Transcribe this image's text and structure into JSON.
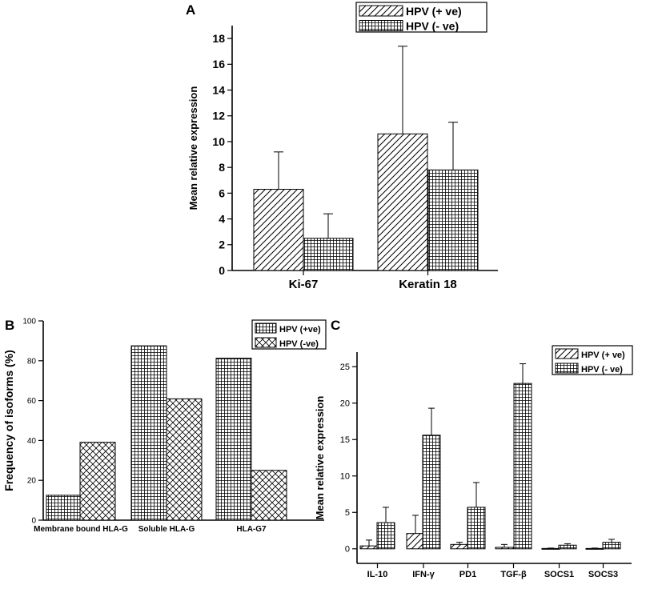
{
  "chart_data": [
    {
      "panel": "A",
      "type": "bar",
      "categories": [
        "Ki-67",
        "Keratin 18"
      ],
      "series": [
        {
          "name": "HPV (+ ve)",
          "values": [
            6.3,
            10.6
          ],
          "errors": [
            2.9,
            6.8
          ],
          "pattern": "diag"
        },
        {
          "name": "HPV (- ve)",
          "values": [
            2.5,
            7.8
          ],
          "errors": [
            1.9,
            3.7
          ],
          "pattern": "grid"
        }
      ],
      "title": "",
      "xlabel": "",
      "ylabel": "Mean relative expression",
      "ylim": [
        0,
        19
      ],
      "yticks": [
        0,
        2,
        4,
        6,
        8,
        10,
        12,
        14,
        16,
        18
      ],
      "legend": "top-right"
    },
    {
      "panel": "B",
      "type": "bar",
      "categories": [
        "Membrane bound HLA-G",
        "Soluble HLA-G",
        "HLA-G7"
      ],
      "series": [
        {
          "name": "HPV (+ve)",
          "values": [
            12.5,
            87.5,
            81.3
          ],
          "pattern": "grid"
        },
        {
          "name": "HPV (-ve)",
          "values": [
            39.1,
            60.9,
            25.0
          ],
          "pattern": "cross"
        }
      ],
      "title": "",
      "xlabel": "",
      "ylabel": "Frequency of isoforms (%)",
      "ylim": [
        0,
        100
      ],
      "yticks": [
        0,
        20,
        40,
        60,
        80,
        100
      ],
      "legend": "top-right"
    },
    {
      "panel": "C",
      "type": "bar",
      "categories": [
        "IL-10",
        "IFN-γ",
        "PD1",
        "TGF-β",
        "SOCS1",
        "SOCS3"
      ],
      "series": [
        {
          "name": "HPV (+ ve)",
          "values": [
            0.4,
            2.1,
            0.6,
            0.2,
            0.05,
            0.05
          ],
          "errors": [
            0.8,
            2.5,
            0.3,
            0.4,
            0.05,
            0.05
          ],
          "pattern": "diag"
        },
        {
          "name": "HPV (- ve)",
          "values": [
            3.6,
            15.6,
            5.7,
            22.7,
            0.5,
            0.9
          ],
          "errors": [
            2.1,
            3.7,
            3.4,
            2.7,
            0.2,
            0.4
          ],
          "pattern": "grid"
        }
      ],
      "title": "",
      "xlabel": "",
      "ylabel": "Mean relative expression",
      "ylim": [
        -2,
        27
      ],
      "yticks": [
        0,
        5,
        10,
        15,
        20,
        25
      ],
      "legend": "top-right"
    }
  ]
}
